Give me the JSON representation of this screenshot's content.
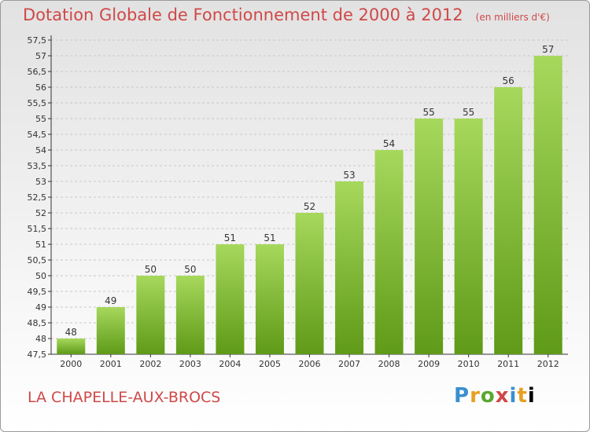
{
  "title": "Dotation Globale de Fonctionnement de 2000 à 2012",
  "unit_note": "(en milliers d'€)",
  "commune": "LA CHAPELLE-AUX-BROCS",
  "brand": {
    "letters": [
      "P",
      "r",
      "o",
      "x",
      "i",
      "t",
      "i"
    ]
  },
  "colors": {
    "title": "#d04848",
    "bar_top": "#a6d85c",
    "bar_bottom": "#5f9a18",
    "axis": "#333333",
    "grid": "#c8c8c8"
  },
  "chart_data": {
    "type": "bar",
    "categories": [
      "2000",
      "2001",
      "2002",
      "2003",
      "2004",
      "2005",
      "2006",
      "2007",
      "2008",
      "2009",
      "2010",
      "2011",
      "2012"
    ],
    "values": [
      48,
      49,
      50,
      50,
      51,
      51,
      52,
      53,
      54,
      55,
      55,
      56,
      57
    ],
    "title": "Dotation Globale de Fonctionnement de 2000 à 2012",
    "subtitle": "(en milliers d'€)",
    "xlabel": "",
    "ylabel": "",
    "ylim": [
      47.5,
      57.5
    ],
    "yticks": [
      "47,5",
      "48",
      "48,5",
      "49",
      "49,5",
      "50",
      "50,5",
      "51",
      "51,5",
      "52",
      "52,5",
      "53",
      "53,5",
      "54",
      "54,5",
      "55",
      "55,5",
      "56",
      "56,5",
      "57",
      "57,5"
    ],
    "grid": true,
    "legend": "none"
  }
}
